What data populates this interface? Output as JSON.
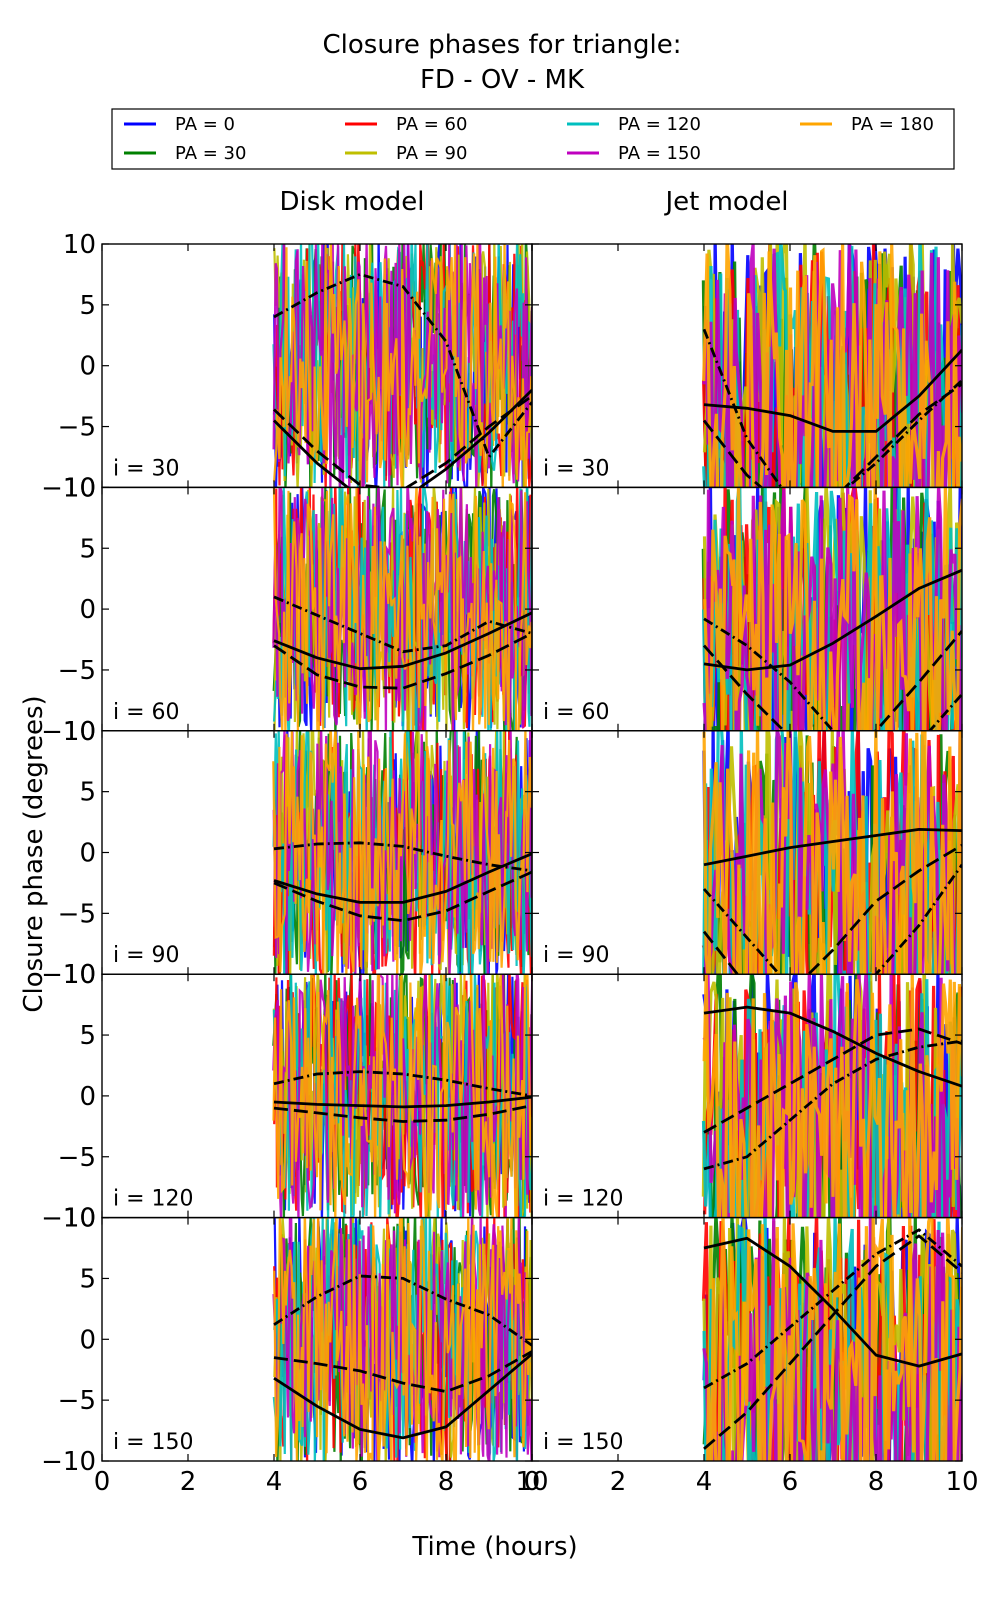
{
  "figure": {
    "title_line1": "Closure phases for triangle:",
    "title_line2": "FD - OV - MK",
    "ylabel": "Closure phase (degrees)",
    "xlabel": "Time (hours)",
    "column_titles": [
      "Disk model",
      "Jet model"
    ]
  },
  "legend": [
    {
      "label": "PA = 0",
      "color": "#0000ff"
    },
    {
      "label": "PA = 30",
      "color": "#008000"
    },
    {
      "label": "PA = 60",
      "color": "#ff0000"
    },
    {
      "label": "PA = 90",
      "color": "#bfbf00"
    },
    {
      "label": "PA = 120",
      "color": "#00bfbf"
    },
    {
      "label": "PA = 150",
      "color": "#bf00bf"
    },
    {
      "label": "PA = 180",
      "color": "#ffa500"
    }
  ],
  "chart_data": {
    "type": "line",
    "xlim": [
      0,
      10
    ],
    "ylim": [
      -10,
      10
    ],
    "xticks": [
      0,
      2,
      4,
      6,
      8,
      10
    ],
    "yticks": [
      -10,
      -5,
      0,
      5,
      10
    ],
    "columns": [
      "Disk model",
      "Jet model"
    ],
    "rows": [
      {
        "label": "i = 30",
        "disk": {
          "solid": [
            [
              4,
              -4.5
            ],
            [
              5,
              -8
            ],
            [
              6,
              -10.8
            ],
            [
              7,
              -11
            ],
            [
              8,
              -8.5
            ],
            [
              9,
              -5.5
            ],
            [
              10,
              -2
            ]
          ],
          "dashed": [
            [
              4,
              -3.6
            ],
            [
              5,
              -7
            ],
            [
              6,
              -9.8
            ],
            [
              7,
              -10.2
            ],
            [
              8,
              -8
            ],
            [
              9,
              -5
            ],
            [
              10,
              -2.5
            ]
          ],
          "dashdot": [
            [
              4,
              4
            ],
            [
              5,
              6
            ],
            [
              6,
              7.5
            ],
            [
              7,
              6.5
            ],
            [
              8,
              2
            ],
            [
              9,
              -7.5
            ],
            [
              10,
              -3
            ]
          ]
        },
        "jet": {
          "solid": [
            [
              4,
              -3.2
            ],
            [
              5,
              -3.5
            ],
            [
              6,
              -4.1
            ],
            [
              7,
              -5.4
            ],
            [
              8,
              -5.4
            ],
            [
              9,
              -2.5
            ],
            [
              10,
              1.3
            ]
          ],
          "dashed": [
            [
              4,
              -4.5
            ],
            [
              5,
              -9
            ],
            [
              6,
              -12
            ],
            [
              7,
              -11
            ],
            [
              8,
              -7.5
            ],
            [
              9,
              -4
            ],
            [
              10,
              -1.5
            ]
          ],
          "dashdot": [
            [
              4,
              3
            ],
            [
              5,
              -6
            ],
            [
              6,
              -11
            ],
            [
              7,
              -11
            ],
            [
              8,
              -8
            ],
            [
              9,
              -4.5
            ],
            [
              10,
              -1.2
            ]
          ]
        }
      },
      {
        "label": "i = 60",
        "disk": {
          "solid": [
            [
              4,
              -2.6
            ],
            [
              5,
              -4
            ],
            [
              6,
              -4.9
            ],
            [
              7,
              -4.7
            ],
            [
              8,
              -3.6
            ],
            [
              9,
              -2
            ],
            [
              10,
              -0.3
            ]
          ],
          "dashed": [
            [
              4,
              -3
            ],
            [
              5,
              -5.4
            ],
            [
              6,
              -6.4
            ],
            [
              7,
              -6.5
            ],
            [
              8,
              -5.3
            ],
            [
              9,
              -3.8
            ],
            [
              10,
              -2
            ]
          ],
          "dashdot": [
            [
              4,
              1
            ],
            [
              5,
              -0.5
            ],
            [
              6,
              -2
            ],
            [
              7,
              -3.5
            ],
            [
              8,
              -3
            ],
            [
              9,
              -1
            ],
            [
              10,
              -2
            ]
          ]
        },
        "jet": {
          "solid": [
            [
              4,
              -4.5
            ],
            [
              5,
              -5
            ],
            [
              6,
              -4.6
            ],
            [
              7,
              -2.8
            ],
            [
              8,
              -0.6
            ],
            [
              9,
              1.7
            ],
            [
              10,
              3.2
            ]
          ],
          "dashed": [
            [
              4,
              -3
            ],
            [
              5,
              -7
            ],
            [
              6,
              -10.5
            ],
            [
              7,
              -11
            ],
            [
              8,
              -10
            ],
            [
              9,
              -6
            ],
            [
              10,
              -1.8
            ]
          ],
          "dashdot": [
            [
              4,
              -0.8
            ],
            [
              5,
              -3
            ],
            [
              6,
              -6
            ],
            [
              7,
              -10
            ],
            [
              8,
              -12
            ],
            [
              9,
              -11
            ],
            [
              10,
              -7
            ]
          ]
        }
      },
      {
        "label": "i = 90",
        "disk": {
          "solid": [
            [
              4,
              -2.3
            ],
            [
              5,
              -3.4
            ],
            [
              6,
              -4.1
            ],
            [
              7,
              -4.1
            ],
            [
              8,
              -3.2
            ],
            [
              9,
              -1.6
            ],
            [
              10,
              -0.1
            ]
          ],
          "dashed": [
            [
              4,
              -2.5
            ],
            [
              5,
              -4
            ],
            [
              6,
              -5.2
            ],
            [
              7,
              -5.6
            ],
            [
              8,
              -4.8
            ],
            [
              9,
              -3.2
            ],
            [
              10,
              -1.6
            ]
          ],
          "dashdot": [
            [
              4,
              0.3
            ],
            [
              5,
              0.7
            ],
            [
              6,
              0.8
            ],
            [
              7,
              0.5
            ],
            [
              8,
              -0.3
            ],
            [
              9,
              -1
            ],
            [
              10,
              -1.5
            ]
          ]
        },
        "jet": {
          "solid": [
            [
              4,
              -1
            ],
            [
              5,
              -0.3
            ],
            [
              6,
              0.4
            ],
            [
              7,
              0.9
            ],
            [
              8,
              1.4
            ],
            [
              9,
              1.9
            ],
            [
              10,
              1.8
            ]
          ],
          "dashed": [
            [
              4,
              -6.5
            ],
            [
              5,
              -11
            ],
            [
              6,
              -11.5
            ],
            [
              7,
              -8
            ],
            [
              8,
              -4
            ],
            [
              9,
              -1.5
            ],
            [
              10,
              0.6
            ]
          ],
          "dashdot": [
            [
              4,
              -3
            ],
            [
              5,
              -7
            ],
            [
              6,
              -11
            ],
            [
              7,
              -12
            ],
            [
              8,
              -10
            ],
            [
              9,
              -6
            ],
            [
              10,
              -1
            ]
          ]
        }
      },
      {
        "label": "i = 120",
        "disk": {
          "solid": [
            [
              4,
              -0.5
            ],
            [
              5,
              -0.7
            ],
            [
              6,
              -0.8
            ],
            [
              7,
              -0.9
            ],
            [
              8,
              -0.8
            ],
            [
              9,
              -0.5
            ],
            [
              10,
              -0.1
            ]
          ],
          "dashed": [
            [
              4,
              -1
            ],
            [
              5,
              -1.4
            ],
            [
              6,
              -1.8
            ],
            [
              7,
              -2.1
            ],
            [
              8,
              -2
            ],
            [
              9,
              -1.5
            ],
            [
              10,
              -0.8
            ]
          ],
          "dashdot": [
            [
              4,
              1
            ],
            [
              5,
              1.8
            ],
            [
              6,
              2
            ],
            [
              7,
              1.8
            ],
            [
              8,
              1.3
            ],
            [
              9,
              0.6
            ],
            [
              10,
              0
            ]
          ]
        },
        "jet": {
          "solid": [
            [
              4,
              6.8
            ],
            [
              5,
              7.3
            ],
            [
              6,
              6.8
            ],
            [
              7,
              5.3
            ],
            [
              8,
              3.5
            ],
            [
              9,
              2
            ],
            [
              10,
              0.8
            ]
          ],
          "dashed": [
            [
              4,
              -3
            ],
            [
              5,
              -1
            ],
            [
              6,
              1
            ],
            [
              7,
              3
            ],
            [
              8,
              5
            ],
            [
              9,
              5.5
            ],
            [
              10,
              4.3
            ]
          ],
          "dashdot": [
            [
              4,
              -6
            ],
            [
              5,
              -5
            ],
            [
              6,
              -2
            ],
            [
              7,
              1
            ],
            [
              8,
              3
            ],
            [
              9,
              4
            ],
            [
              10,
              4.5
            ]
          ]
        }
      },
      {
        "label": "i = 150",
        "disk": {
          "solid": [
            [
              4,
              -3.2
            ],
            [
              5,
              -5.5
            ],
            [
              6,
              -7.4
            ],
            [
              7,
              -8.1
            ],
            [
              8,
              -7.2
            ],
            [
              9,
              -4.2
            ],
            [
              10,
              -1.2
            ]
          ],
          "dashed": [
            [
              4,
              -1.5
            ],
            [
              5,
              -2
            ],
            [
              6,
              -2.6
            ],
            [
              7,
              -3.6
            ],
            [
              8,
              -4.3
            ],
            [
              9,
              -3
            ],
            [
              10,
              -1
            ]
          ],
          "dashdot": [
            [
              4,
              1.2
            ],
            [
              5,
              3.5
            ],
            [
              6,
              5.2
            ],
            [
              7,
              5
            ],
            [
              8,
              3.3
            ],
            [
              9,
              2
            ],
            [
              10,
              -0.5
            ]
          ]
        },
        "jet": {
          "solid": [
            [
              4,
              7.5
            ],
            [
              5,
              8.3
            ],
            [
              6,
              6
            ],
            [
              7,
              2.5
            ],
            [
              8,
              -1.3
            ],
            [
              9,
              -2.2
            ],
            [
              10,
              -1.2
            ]
          ],
          "dashed": [
            [
              4,
              -9
            ],
            [
              5,
              -6
            ],
            [
              6,
              -2
            ],
            [
              7,
              2
            ],
            [
              8,
              6
            ],
            [
              9,
              8.5
            ],
            [
              10,
              5.5
            ]
          ],
          "dashdot": [
            [
              4,
              -4
            ],
            [
              5,
              -2
            ],
            [
              6,
              1
            ],
            [
              7,
              4
            ],
            [
              8,
              7
            ],
            [
              9,
              9
            ],
            [
              10,
              6
            ]
          ]
        }
      }
    ]
  }
}
